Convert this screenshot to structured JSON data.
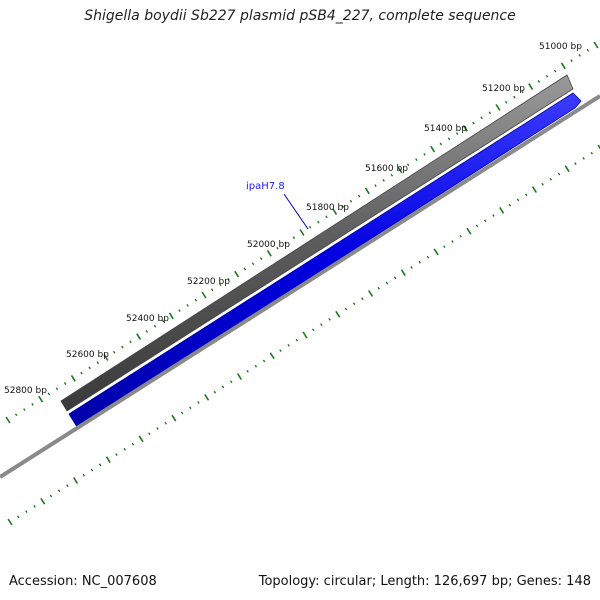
{
  "title": "Shigella boydii Sb227 plasmid pSB4_227, complete sequence",
  "footer": {
    "accession": "Accession: NC_007608",
    "summary": "Topology: circular; Length: 126,697 bp; Genes: 148"
  },
  "scale_labels": [
    "51000 bp",
    "51200 bp",
    "51400 bp",
    "51600 bp",
    "51800 bp",
    "52000 bp",
    "52200 bp",
    "52400 bp",
    "52600 bp",
    "52800 bp"
  ],
  "gene_label": "ipaH7.8",
  "colors": {
    "backbone": "#5e5e5e",
    "gene": "#0000ee",
    "ticks": "#1a7a1a",
    "thin_track": "#8a8a8a",
    "label": "#1a1aff"
  }
}
